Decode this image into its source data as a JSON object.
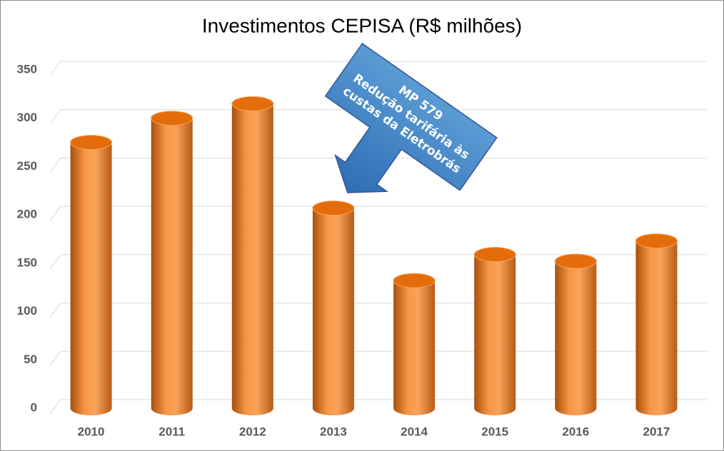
{
  "chart_data": {
    "type": "bar",
    "title": "Investimentos CEPISA (R$ milhões)",
    "categories": [
      "2010",
      "2011",
      "2012",
      "2013",
      "2014",
      "2015",
      "2016",
      "2017"
    ],
    "values": [
      275,
      300,
      315,
      207,
      132,
      159,
      152,
      173
    ],
    "color": "#ed7d31",
    "ylim": [
      0,
      350
    ],
    "yticks": [
      0,
      50,
      100,
      150,
      200,
      250,
      300,
      350
    ],
    "grid": true,
    "annotations": [
      "MP 579",
      "Redução tarifária às",
      "custas da Eletrobrás"
    ]
  }
}
